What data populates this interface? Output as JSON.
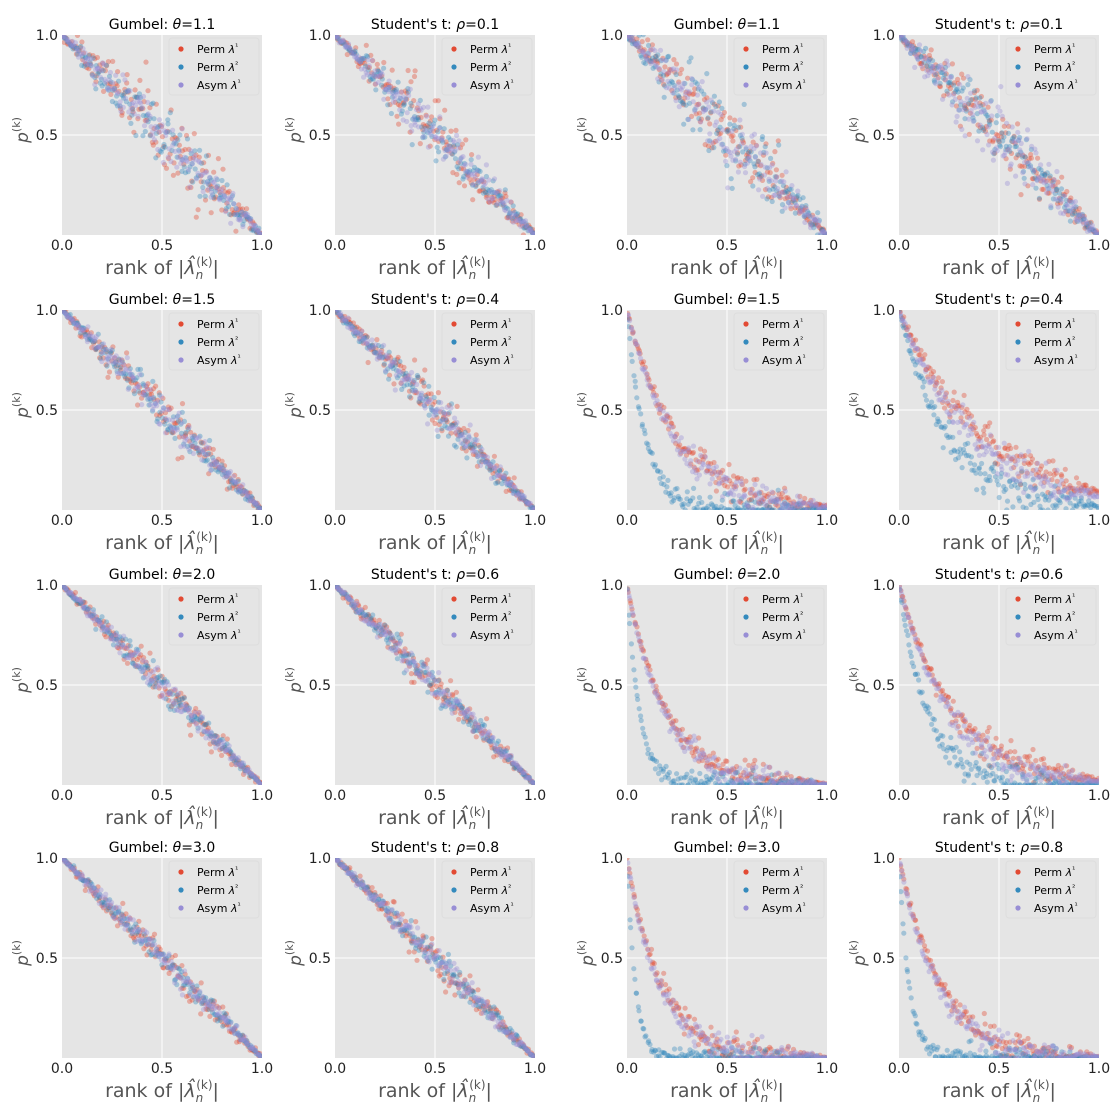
{
  "figure": {
    "legend_labels": [
      "Perm λ¹",
      "Perm λ²",
      "Asym λ¹"
    ],
    "series_colors": [
      "#E24A33",
      "#348ABD",
      "#988ED5"
    ],
    "axes_background": "#E5E5E5",
    "grid_color": "#FFFFFF",
    "axis_text_color": "#555555",
    "title_color": "#000000"
  },
  "chart_data": [
    {
      "type": "scatter",
      "title": "Gumbel: θ=1.1",
      "title_prefix": "Gumbel: ",
      "param_symbol": "θ",
      "param_value": "1.1",
      "xlabel": "rank of |λ̂_n^(k)|",
      "ylabel": "p^(k)",
      "xlim": [
        0,
        1
      ],
      "ylim": [
        0.0,
        1.0
      ],
      "xticks": [
        "0.0",
        "0.5",
        "1.0"
      ],
      "yticks": [
        "1.0",
        "0.5"
      ],
      "grid": true,
      "legend_position": "top-right",
      "series": [
        {
          "name": "Perm λ¹",
          "shape": "linear",
          "spread": 0.09
        },
        {
          "name": "Perm λ²",
          "shape": "linear",
          "spread": 0.07
        },
        {
          "name": "Asym λ¹",
          "shape": "linear",
          "spread": 0.06
        }
      ]
    },
    {
      "type": "scatter",
      "title": "Student's t: ρ=0.1",
      "title_prefix": "Student's t: ",
      "param_symbol": "ρ",
      "param_value": "0.1",
      "xlabel": "rank of |λ̂_n^(k)|",
      "ylabel": "p^(k)",
      "xlim": [
        0,
        1
      ],
      "ylim": [
        0.0,
        1.0
      ],
      "xticks": [
        "0.0",
        "0.5",
        "1.0"
      ],
      "yticks": [
        "1.0",
        "0.5"
      ],
      "grid": true,
      "legend_position": "top-right",
      "series": [
        {
          "name": "Perm λ¹",
          "shape": "linear",
          "spread": 0.07
        },
        {
          "name": "Perm λ²",
          "shape": "linear",
          "spread": 0.05
        },
        {
          "name": "Asym λ¹",
          "shape": "linear",
          "spread": 0.05
        }
      ]
    },
    {
      "type": "scatter",
      "title": "Gumbel: θ=1.1",
      "title_prefix": "Gumbel: ",
      "param_symbol": "θ",
      "param_value": "1.1",
      "xlabel": "rank of |λ̂_n^(k)|",
      "ylabel": "p^(k)",
      "xlim": [
        0,
        1
      ],
      "ylim": [
        0.0,
        1.0
      ],
      "xticks": [
        "0.0",
        "0.5",
        "1.0"
      ],
      "yticks": [
        "1.0",
        "0.5"
      ],
      "grid": true,
      "legend_position": "top-right",
      "series": [
        {
          "name": "Perm λ¹",
          "shape": "linear",
          "spread": 0.08
        },
        {
          "name": "Perm λ²",
          "shape": "linear",
          "spread": 0.1
        },
        {
          "name": "Asym λ¹",
          "shape": "linear",
          "spread": 0.08
        }
      ]
    },
    {
      "type": "scatter",
      "title": "Student's t: ρ=0.1",
      "title_prefix": "Student's t: ",
      "param_symbol": "ρ",
      "param_value": "0.1",
      "xlabel": "rank of |λ̂_n^(k)|",
      "ylabel": "p^(k)",
      "xlim": [
        0,
        1
      ],
      "ylim": [
        0.0,
        1.0
      ],
      "xticks": [
        "0.0",
        "0.5",
        "1.0"
      ],
      "yticks": [
        "1.0",
        "0.5"
      ],
      "grid": true,
      "legend_position": "top-right",
      "series": [
        {
          "name": "Perm λ¹",
          "shape": "linear",
          "spread": 0.07
        },
        {
          "name": "Perm λ²",
          "shape": "linear",
          "spread": 0.06
        },
        {
          "name": "Asym λ¹",
          "shape": "linear",
          "spread": 0.08
        }
      ]
    },
    {
      "type": "scatter",
      "title": "Gumbel: θ=1.5",
      "title_prefix": "Gumbel: ",
      "param_symbol": "θ",
      "param_value": "1.5",
      "xlabel": "rank of |λ̂_n^(k)|",
      "ylabel": "p^(k)",
      "xlim": [
        0,
        1
      ],
      "ylim": [
        0.0,
        1.0
      ],
      "xticks": [
        "0.0",
        "0.5",
        "1.0"
      ],
      "yticks": [
        "1.0",
        "0.5"
      ],
      "grid": true,
      "legend_position": "top-right",
      "series": [
        {
          "name": "Perm λ¹",
          "shape": "linear",
          "spread": 0.05
        },
        {
          "name": "Perm λ²",
          "shape": "linear",
          "spread": 0.04
        },
        {
          "name": "Asym λ¹",
          "shape": "linear",
          "spread": 0.04
        }
      ]
    },
    {
      "type": "scatter",
      "title": "Student's t: ρ=0.4",
      "title_prefix": "Student's t: ",
      "param_symbol": "ρ",
      "param_value": "0.4",
      "xlabel": "rank of |λ̂_n^(k)|",
      "ylabel": "p^(k)",
      "xlim": [
        0,
        1
      ],
      "ylim": [
        0.0,
        1.0
      ],
      "xticks": [
        "0.0",
        "0.5",
        "1.0"
      ],
      "yticks": [
        "1.0",
        "0.5"
      ],
      "grid": true,
      "legend_position": "top-right",
      "series": [
        {
          "name": "Perm λ¹",
          "shape": "linear",
          "spread": 0.05
        },
        {
          "name": "Perm λ²",
          "shape": "linear",
          "spread": 0.04
        },
        {
          "name": "Asym λ¹",
          "shape": "linear",
          "spread": 0.04
        }
      ]
    },
    {
      "type": "scatter",
      "title": "Gumbel: θ=1.5",
      "title_prefix": "Gumbel: ",
      "param_symbol": "θ",
      "param_value": "1.5",
      "xlabel": "rank of |λ̂_n^(k)|",
      "ylabel": "p^(k)",
      "xlim": [
        0,
        1
      ],
      "ylim": [
        0.0,
        1.0
      ],
      "xticks": [
        "0.0",
        "0.5",
        "1.0"
      ],
      "yticks": [
        "1.0",
        "0.5"
      ],
      "grid": true,
      "legend_position": "top-right",
      "series": [
        {
          "name": "Perm λ¹",
          "shape": "decay",
          "rate": 4.0,
          "spread": 0.04
        },
        {
          "name": "Perm λ²",
          "shape": "decay",
          "rate": 11.0,
          "spread": 0.04
        },
        {
          "name": "Asym λ¹",
          "shape": "decay",
          "rate": 4.3,
          "spread": 0.04
        }
      ]
    },
    {
      "type": "scatter",
      "title": "Student's t: ρ=0.4",
      "title_prefix": "Student's t: ",
      "param_symbol": "ρ",
      "param_value": "0.4",
      "xlabel": "rank of |λ̂_n^(k)|",
      "ylabel": "p^(k)",
      "xlim": [
        0,
        1
      ],
      "ylim": [
        0.0,
        1.0
      ],
      "xticks": [
        "0.0",
        "0.5",
        "1.0"
      ],
      "yticks": [
        "1.0",
        "0.5"
      ],
      "grid": true,
      "legend_position": "top-right",
      "series": [
        {
          "name": "Perm λ¹",
          "shape": "decay",
          "rate": 2.4,
          "spread": 0.05
        },
        {
          "name": "Perm λ²",
          "shape": "decay",
          "rate": 4.0,
          "spread": 0.05
        },
        {
          "name": "Asym λ¹",
          "shape": "decay",
          "rate": 2.7,
          "spread": 0.05
        }
      ]
    },
    {
      "type": "scatter",
      "title": "Gumbel: θ=2.0",
      "title_prefix": "Gumbel: ",
      "param_symbol": "θ",
      "param_value": "2.0",
      "xlabel": "rank of |λ̂_n^(k)|",
      "ylabel": "p^(k)",
      "xlim": [
        0,
        1
      ],
      "ylim": [
        0.0,
        1.0
      ],
      "xticks": [
        "0.0",
        "0.5",
        "1.0"
      ],
      "yticks": [
        "1.0",
        "0.5"
      ],
      "grid": true,
      "legend_position": "top-right",
      "series": [
        {
          "name": "Perm λ¹",
          "shape": "linear",
          "spread": 0.04
        },
        {
          "name": "Perm λ²",
          "shape": "linear",
          "spread": 0.03
        },
        {
          "name": "Asym λ¹",
          "shape": "linear",
          "spread": 0.03
        }
      ]
    },
    {
      "type": "scatter",
      "title": "Student's t: ρ=0.6",
      "title_prefix": "Student's t: ",
      "param_symbol": "ρ",
      "param_value": "0.6",
      "xlabel": "rank of |λ̂_n^(k)|",
      "ylabel": "p^(k)",
      "xlim": [
        0,
        1
      ],
      "ylim": [
        0.0,
        1.0
      ],
      "xticks": [
        "0.0",
        "0.5",
        "1.0"
      ],
      "yticks": [
        "1.0",
        "0.5"
      ],
      "grid": true,
      "legend_position": "top-right",
      "series": [
        {
          "name": "Perm λ¹",
          "shape": "linear",
          "spread": 0.04
        },
        {
          "name": "Perm λ²",
          "shape": "linear",
          "spread": 0.03
        },
        {
          "name": "Asym λ¹",
          "shape": "linear",
          "spread": 0.03
        }
      ]
    },
    {
      "type": "scatter",
      "title": "Gumbel: θ=2.0",
      "title_prefix": "Gumbel: ",
      "param_symbol": "θ",
      "param_value": "2.0",
      "xlabel": "rank of |λ̂_n^(k)|",
      "ylabel": "p^(k)",
      "xlim": [
        0,
        1
      ],
      "ylim": [
        0.0,
        1.0
      ],
      "xticks": [
        "0.0",
        "0.5",
        "1.0"
      ],
      "yticks": [
        "1.0",
        "0.5"
      ],
      "grid": true,
      "legend_position": "top-right",
      "series": [
        {
          "name": "Perm λ¹",
          "shape": "decay",
          "rate": 5.0,
          "spread": 0.035
        },
        {
          "name": "Perm λ²",
          "shape": "decay",
          "rate": 16.0,
          "spread": 0.03
        },
        {
          "name": "Asym λ¹",
          "shape": "decay",
          "rate": 5.4,
          "spread": 0.035
        }
      ]
    },
    {
      "type": "scatter",
      "title": "Student's t: ρ=0.6",
      "title_prefix": "Student's t: ",
      "param_symbol": "ρ",
      "param_value": "0.6",
      "xlabel": "rank of |λ̂_n^(k)|",
      "ylabel": "p^(k)",
      "xlim": [
        0,
        1
      ],
      "ylim": [
        0.0,
        1.0
      ],
      "xticks": [
        "0.0",
        "0.5",
        "1.0"
      ],
      "yticks": [
        "1.0",
        "0.5"
      ],
      "grid": true,
      "legend_position": "top-right",
      "series": [
        {
          "name": "Perm λ¹",
          "shape": "decay",
          "rate": 3.6,
          "spread": 0.04
        },
        {
          "name": "Perm λ²",
          "shape": "decay",
          "rate": 7.0,
          "spread": 0.04
        },
        {
          "name": "Asym λ¹",
          "shape": "decay",
          "rate": 3.9,
          "spread": 0.04
        }
      ]
    },
    {
      "type": "scatter",
      "title": "Gumbel: θ=3.0",
      "title_prefix": "Gumbel: ",
      "param_symbol": "θ",
      "param_value": "3.0",
      "xlabel": "rank of |λ̂_n^(k)|",
      "ylabel": "p^(k)",
      "xlim": [
        0,
        1
      ],
      "ylim": [
        0.0,
        1.0
      ],
      "xticks": [
        "0.0",
        "0.5",
        "1.0"
      ],
      "yticks": [
        "1.0",
        "0.5"
      ],
      "grid": true,
      "legend_position": "top-right",
      "series": [
        {
          "name": "Perm λ¹",
          "shape": "linear",
          "spread": 0.04
        },
        {
          "name": "Perm λ²",
          "shape": "linear",
          "spread": 0.03
        },
        {
          "name": "Asym λ¹",
          "shape": "linear",
          "spread": 0.03
        }
      ]
    },
    {
      "type": "scatter",
      "title": "Student's t: ρ=0.8",
      "title_prefix": "Student's t: ",
      "param_symbol": "ρ",
      "param_value": "0.8",
      "xlabel": "rank of |λ̂_n^(k)|",
      "ylabel": "p^(k)",
      "xlim": [
        0,
        1
      ],
      "ylim": [
        0.0,
        1.0
      ],
      "xticks": [
        "0.0",
        "0.5",
        "1.0"
      ],
      "yticks": [
        "1.0",
        "0.5"
      ],
      "grid": true,
      "legend_position": "top-right",
      "series": [
        {
          "name": "Perm λ¹",
          "shape": "linear",
          "spread": 0.04
        },
        {
          "name": "Perm λ²",
          "shape": "linear",
          "spread": 0.03
        },
        {
          "name": "Asym λ¹",
          "shape": "linear",
          "spread": 0.03
        }
      ]
    },
    {
      "type": "scatter",
      "title": "Gumbel: θ=3.0",
      "title_prefix": "Gumbel: ",
      "param_symbol": "θ",
      "param_value": "3.0",
      "xlabel": "rank of |λ̂_n^(k)|",
      "ylabel": "p^(k)",
      "xlim": [
        0,
        1
      ],
      "ylim": [
        0.0,
        1.0
      ],
      "xticks": [
        "0.0",
        "0.5",
        "1.0"
      ],
      "yticks": [
        "1.0",
        "0.5"
      ],
      "grid": true,
      "legend_position": "top-right",
      "series": [
        {
          "name": "Perm λ¹",
          "shape": "decay",
          "rate": 5.8,
          "spread": 0.035
        },
        {
          "name": "Perm λ²",
          "shape": "decay",
          "rate": 24.0,
          "spread": 0.025
        },
        {
          "name": "Asym λ¹",
          "shape": "decay",
          "rate": 6.2,
          "spread": 0.035
        }
      ]
    },
    {
      "type": "scatter",
      "title": "Student's t: ρ=0.8",
      "title_prefix": "Student's t: ",
      "param_symbol": "ρ",
      "param_value": "0.8",
      "xlabel": "rank of |λ̂_n^(k)|",
      "ylabel": "p^(k)",
      "xlim": [
        0,
        1
      ],
      "ylim": [
        0.0,
        1.0
      ],
      "xticks": [
        "0.0",
        "0.5",
        "1.0"
      ],
      "yticks": [
        "1.0",
        "0.5"
      ],
      "grid": true,
      "legend_position": "top-right",
      "series": [
        {
          "name": "Perm λ¹",
          "shape": "decay",
          "rate": 4.8,
          "spread": 0.035
        },
        {
          "name": "Perm λ²",
          "shape": "decay",
          "rate": 20.0,
          "spread": 0.03
        },
        {
          "name": "Asym λ¹",
          "shape": "decay",
          "rate": 5.2,
          "spread": 0.035
        }
      ]
    }
  ]
}
